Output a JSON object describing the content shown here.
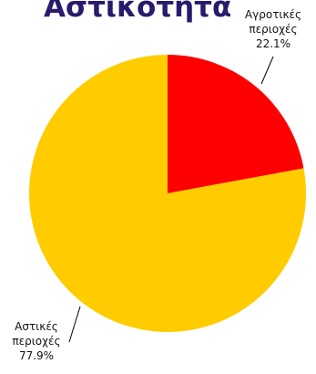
{
  "chart_data": {
    "type": "pie",
    "title": "Αστικότητα",
    "slices": [
      {
        "label_lines": [
          "Αγροτικές",
          "περιοχές",
          "22.1%"
        ],
        "value": 22.1,
        "color": "#ff0000"
      },
      {
        "label_lines": [
          "Αστικές",
          "περιοχές",
          "77.9%"
        ],
        "value": 77.9,
        "color": "#ffcc00"
      }
    ],
    "legend": "none",
    "start_angle": "12 o'clock",
    "direction": "clockwise"
  }
}
